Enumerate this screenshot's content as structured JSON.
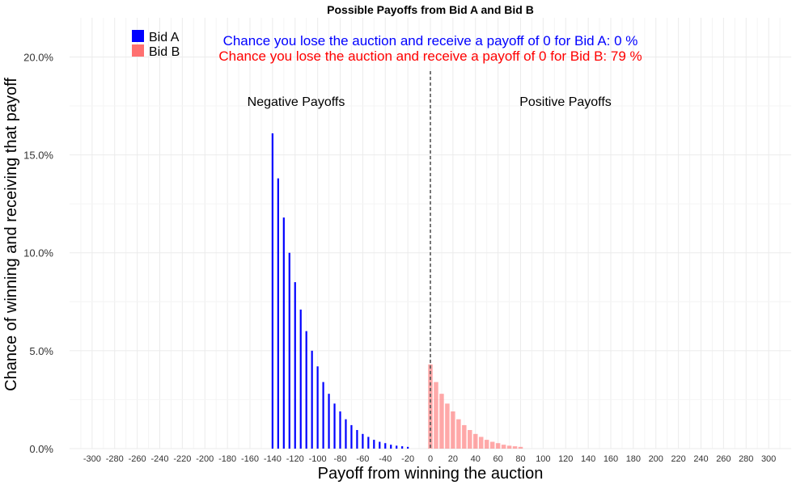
{
  "chart_data": {
    "type": "bar",
    "title": "Possible Payoffs from Bid A and Bid B",
    "xlabel": "Payoff from winning the auction",
    "ylabel": "Chance of winning and receiving that payoff",
    "xlim": [
      -320,
      320
    ],
    "ylim": [
      0,
      0.22
    ],
    "x_ticks": [
      -300,
      -280,
      -260,
      -240,
      -220,
      -200,
      -180,
      -160,
      -140,
      -120,
      -100,
      -80,
      -60,
      -40,
      -20,
      0,
      20,
      40,
      60,
      80,
      100,
      120,
      140,
      160,
      180,
      200,
      220,
      240,
      260,
      280,
      300
    ],
    "y_ticks": [
      0,
      0.05,
      0.1,
      0.15,
      0.2
    ],
    "y_tick_labels": [
      "0.0%",
      "5.0%",
      "10.0%",
      "15.0%",
      "20.0%"
    ],
    "grid": true,
    "legend_position": "top-left",
    "series": [
      {
        "name": "Bid A",
        "color": "#0000ff",
        "x": [
          -140,
          -135,
          -130,
          -125,
          -120,
          -115,
          -110,
          -105,
          -100,
          -95,
          -90,
          -85,
          -80,
          -75,
          -70,
          -65,
          -60,
          -55,
          -50,
          -45,
          -40,
          -35,
          -30,
          -25,
          -20
        ],
        "values": [
          0.161,
          0.138,
          0.118,
          0.1,
          0.085,
          0.071,
          0.06,
          0.05,
          0.042,
          0.034,
          0.028,
          0.023,
          0.019,
          0.015,
          0.012,
          0.0095,
          0.0075,
          0.006,
          0.0045,
          0.0035,
          0.0028,
          0.002,
          0.0015,
          0.0012,
          0.0009
        ]
      },
      {
        "name": "Bid B",
        "color": "#ff7070",
        "x": [
          0,
          5,
          10,
          15,
          20,
          25,
          30,
          35,
          40,
          45,
          50,
          55,
          60,
          65,
          70,
          75,
          80
        ],
        "values": [
          0.043,
          0.034,
          0.028,
          0.023,
          0.019,
          0.015,
          0.012,
          0.0095,
          0.0075,
          0.006,
          0.0045,
          0.0035,
          0.0028,
          0.002,
          0.0015,
          0.0012,
          0.0009
        ]
      }
    ],
    "vline_x": 0,
    "annotations": {
      "lose_a": "Chance you lose the auction and receive a payoff of 0 for Bid A:  0 %",
      "lose_b": "Chance you lose the auction and receive a payoff of 0 for Bid B:  79 %",
      "negative": "Negative Payoffs",
      "positive": "Positive Payoffs"
    }
  }
}
